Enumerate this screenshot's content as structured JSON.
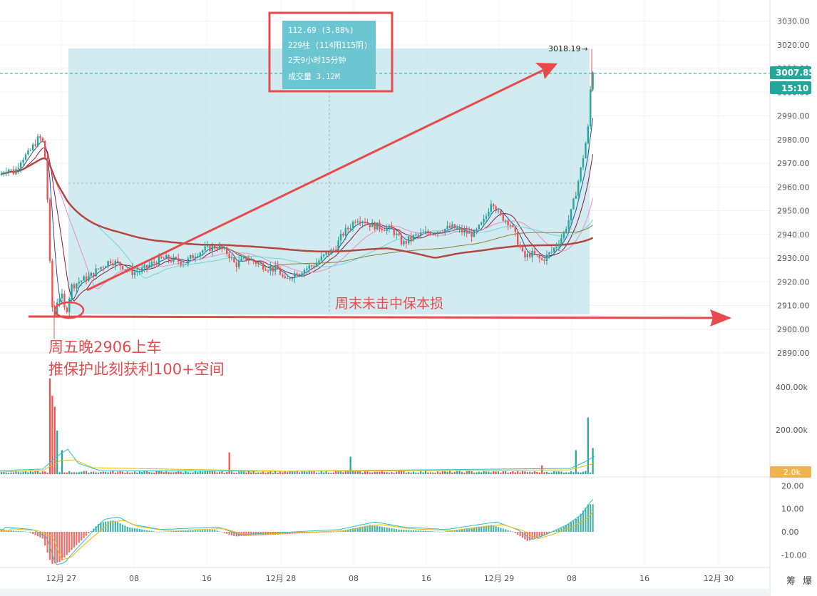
{
  "colors": {
    "up": "#26a69a",
    "down": "#ef5350",
    "measure_fill": "#c4e6ec",
    "measure_label_bg": "#6cc6d1",
    "annotation": "#e8494b",
    "price_badge": "#26a69a",
    "volume_badge": "#f0b350",
    "macd_line": "#27c3c3",
    "signal_line": "#f2b705",
    "ma_fast": "#2b4c99",
    "ma_mid": "#8b1a3a",
    "ma_slow": "#b4463f",
    "ma_long": "#8d8038",
    "ma_pink": "#e990c8",
    "ma_cyan": "#6fd5d8"
  },
  "price_axis": {
    "ticks": [
      "3030.00",
      "3020.00",
      "3010.00",
      "3000.00",
      "2990.00",
      "2980.00",
      "2970.00",
      "2960.00",
      "2950.00",
      "2940.00",
      "2930.00",
      "2920.00",
      "2910.00",
      "2900.00",
      "2890.00"
    ],
    "last_price": "3007.85",
    "countdown": "15:10"
  },
  "volume_axis": {
    "ticks": [
      "400.00k",
      "200.00k"
    ],
    "last_volume": "2.0k"
  },
  "macd_axis": {
    "ticks": [
      "20.00",
      "10.00",
      "0.00",
      "-10.00"
    ]
  },
  "time_axis": {
    "ticks": [
      "12月 27",
      "08",
      "16",
      "12月 28",
      "08",
      "16",
      "12月 29",
      "08",
      "16",
      "12月 30"
    ]
  },
  "measure_box": {
    "line1": "112.69 (3.88%)",
    "line2": "229柱 (114阳115阴)",
    "line3": "2天9小时15分钟",
    "line4": "成交量 3.12M"
  },
  "high_marker": "3018.19",
  "annotations": {
    "entry_line1": "周五晚2906上车",
    "entry_line2": "推保护此刻获利100+空间",
    "weekend_note": "周末未击中保本损"
  },
  "corner_labels": [
    "筹",
    "爆"
  ],
  "chart_data": {
    "type": "candlestick",
    "panels": [
      "price",
      "volume",
      "macd"
    ],
    "price_range": [
      2885,
      3033
    ],
    "key_levels": {
      "entry": 2906,
      "last": 3007.85,
      "high": 3018.19
    },
    "measure": {
      "change": 112.69,
      "change_pct": 3.88,
      "bars": 229,
      "up_bars": 114,
      "down_bars": 115,
      "duration": "2天9小时15分钟",
      "volume": "3.12M"
    },
    "price_path": [
      [
        0,
        2965
      ],
      [
        10,
        2968
      ],
      [
        20,
        2966
      ],
      [
        30,
        2972
      ],
      [
        40,
        2974
      ],
      [
        48,
        2978
      ],
      [
        55,
        2981
      ],
      [
        62,
        2978
      ],
      [
        66,
        2960
      ],
      [
        69,
        2935
      ],
      [
        72,
        2912
      ],
      [
        76,
        2904
      ],
      [
        80,
        2912
      ],
      [
        86,
        2915
      ],
      [
        92,
        2906
      ],
      [
        100,
        2918
      ],
      [
        110,
        2920
      ],
      [
        125,
        2922
      ],
      [
        140,
        2926
      ],
      [
        155,
        2929
      ],
      [
        170,
        2927
      ],
      [
        185,
        2924
      ],
      [
        200,
        2925
      ],
      [
        215,
        2928
      ],
      [
        230,
        2930
      ],
      [
        245,
        2929
      ],
      [
        260,
        2928
      ],
      [
        275,
        2932
      ],
      [
        290,
        2934
      ],
      [
        305,
        2935
      ],
      [
        320,
        2932
      ],
      [
        330,
        2927
      ],
      [
        345,
        2930
      ],
      [
        360,
        2928
      ],
      [
        375,
        2926
      ],
      [
        390,
        2925
      ],
      [
        400,
        2920
      ],
      [
        410,
        2923
      ],
      [
        425,
        2925
      ],
      [
        440,
        2927
      ],
      [
        455,
        2931
      ],
      [
        470,
        2934
      ],
      [
        480,
        2940
      ],
      [
        490,
        2943
      ],
      [
        500,
        2947
      ],
      [
        510,
        2946
      ],
      [
        520,
        2944
      ],
      [
        535,
        2943
      ],
      [
        550,
        2942
      ],
      [
        565,
        2936
      ],
      [
        575,
        2938
      ],
      [
        590,
        2940
      ],
      [
        605,
        2941
      ],
      [
        620,
        2942
      ],
      [
        635,
        2943
      ],
      [
        650,
        2941
      ],
      [
        665,
        2940
      ],
      [
        680,
        2946
      ],
      [
        690,
        2955
      ],
      [
        700,
        2948
      ],
      [
        715,
        2945
      ],
      [
        725,
        2938
      ],
      [
        735,
        2930
      ],
      [
        745,
        2932
      ],
      [
        760,
        2929
      ],
      [
        775,
        2933
      ],
      [
        790,
        2940
      ],
      [
        800,
        2948
      ],
      [
        808,
        2958
      ],
      [
        815,
        2968
      ],
      [
        820,
        2976
      ],
      [
        825,
        2985
      ],
      [
        830,
        3010
      ],
      [
        834,
        3007.85
      ]
    ],
    "volume_spikes": [
      [
        70,
        440
      ],
      [
        73,
        360
      ],
      [
        76,
        310
      ],
      [
        80,
        200
      ],
      [
        86,
        110
      ],
      [
        320,
        100
      ],
      [
        490,
        80
      ],
      [
        760,
        40
      ],
      [
        808,
        110
      ],
      [
        826,
        260
      ],
      [
        833,
        120
      ]
    ],
    "macd_range": [
      -17,
      22
    ]
  }
}
